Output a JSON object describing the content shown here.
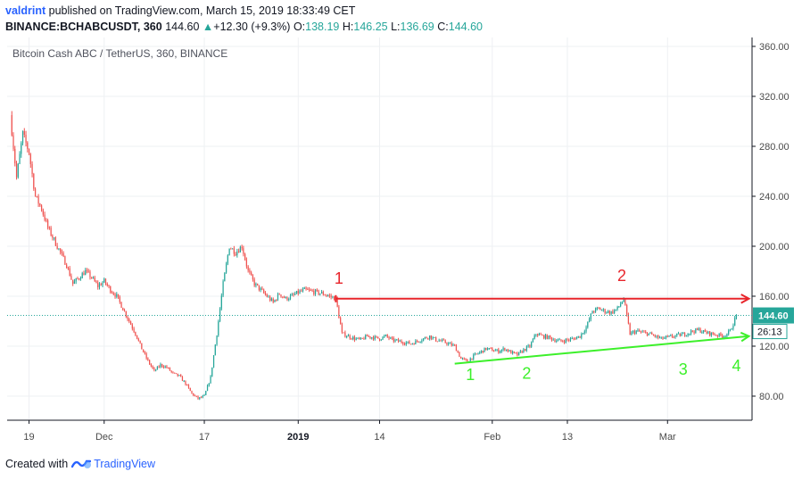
{
  "header": {
    "author": "valdrint",
    "published": "published on TradingView.com, March 15, 2019 18:33:49 CET",
    "symbol": "BINANCE:BCHABCUSDT, 360",
    "last": "144.60",
    "change_arrow": "▲",
    "change": "+12.30 (+9.3%)",
    "o_label": "O:",
    "o_value": "138.19",
    "h_label": "H:",
    "h_value": "146.25",
    "l_label": "L:",
    "l_value": "136.69",
    "c_label": "C:",
    "c_value": "144.60"
  },
  "footer": {
    "created_with": "Created with",
    "brand": "TradingView"
  },
  "colors": {
    "up": "#26a69a",
    "down": "#ef5350",
    "resistance": "#e8252b",
    "support": "#3cf02a",
    "axis": "#131722",
    "price_tag": "#26a69a"
  },
  "chart_data": {
    "type": "candlestick",
    "title": "Bitcoin Cash ABC / TetherUS, 360, BINANCE",
    "xlabel": "",
    "ylabel": "",
    "ylim": [
      70,
      365
    ],
    "y_ticks": [
      "80.00",
      "120.00",
      "160.00",
      "200.00",
      "240.00",
      "280.00",
      "320.00",
      "360.00"
    ],
    "x_ticks": [
      {
        "label": "19",
        "day": 0
      },
      {
        "label": "Dec",
        "day": 12
      },
      {
        "label": "17",
        "day": 28
      },
      {
        "label": "2019",
        "day": 43,
        "bold": true
      },
      {
        "label": "14",
        "day": 56
      },
      {
        "label": "Feb",
        "day": 74
      },
      {
        "label": "13",
        "day": 86
      },
      {
        "label": "Mar",
        "day": 102
      }
    ],
    "x_range_days": [
      -3.5,
      115.5
    ],
    "close_path": [
      [
        -3,
        305
      ],
      [
        -2,
        255
      ],
      [
        -1,
        290
      ],
      [
        0,
        275
      ],
      [
        1,
        240
      ],
      [
        2,
        230
      ],
      [
        3,
        215
      ],
      [
        4,
        205
      ],
      [
        5,
        195
      ],
      [
        6,
        185
      ],
      [
        7,
        170
      ],
      [
        8,
        175
      ],
      [
        9,
        180
      ],
      [
        10,
        175
      ],
      [
        11,
        168
      ],
      [
        12,
        172
      ],
      [
        13,
        165
      ],
      [
        14,
        160
      ],
      [
        15,
        150
      ],
      [
        16,
        140
      ],
      [
        17,
        130
      ],
      [
        18,
        118
      ],
      [
        19,
        108
      ],
      [
        20,
        100
      ],
      [
        21,
        105
      ],
      [
        22,
        103
      ],
      [
        23,
        98
      ],
      [
        24,
        96
      ],
      [
        25,
        90
      ],
      [
        26,
        82
      ],
      [
        27,
        78
      ],
      [
        28,
        80
      ],
      [
        29,
        95
      ],
      [
        30,
        130
      ],
      [
        31,
        170
      ],
      [
        32,
        200
      ],
      [
        33,
        195
      ],
      [
        34,
        200
      ],
      [
        35,
        180
      ],
      [
        36,
        170
      ],
      [
        37,
        165
      ],
      [
        38,
        160
      ],
      [
        39,
        155
      ],
      [
        40,
        162
      ],
      [
        41,
        158
      ],
      [
        42,
        160
      ],
      [
        43,
        163
      ],
      [
        44,
        165
      ],
      [
        45,
        164
      ],
      [
        46,
        163
      ],
      [
        47,
        162
      ],
      [
        48,
        160
      ],
      [
        49,
        158
      ],
      [
        50,
        130
      ],
      [
        51,
        128
      ],
      [
        52,
        126
      ],
      [
        53,
        125
      ],
      [
        54,
        128
      ],
      [
        55,
        127
      ],
      [
        56,
        126
      ],
      [
        57,
        128
      ],
      [
        58,
        125
      ],
      [
        59,
        124
      ],
      [
        60,
        123
      ],
      [
        61,
        122
      ],
      [
        62,
        124
      ],
      [
        63,
        126
      ],
      [
        64,
        128
      ],
      [
        65,
        125
      ],
      [
        66,
        124
      ],
      [
        67,
        122
      ],
      [
        68,
        120
      ],
      [
        69,
        110
      ],
      [
        70,
        108
      ],
      [
        71,
        112
      ],
      [
        72,
        115
      ],
      [
        73,
        118
      ],
      [
        74,
        117
      ],
      [
        75,
        116
      ],
      [
        76,
        118
      ],
      [
        77,
        115
      ],
      [
        78,
        113
      ],
      [
        79,
        117
      ],
      [
        80,
        120
      ],
      [
        81,
        130
      ],
      [
        82,
        128
      ],
      [
        83,
        127
      ],
      [
        84,
        125
      ],
      [
        85,
        124
      ],
      [
        86,
        125
      ],
      [
        87,
        126
      ],
      [
        88,
        128
      ],
      [
        89,
        135
      ],
      [
        90,
        148
      ],
      [
        91,
        150
      ],
      [
        92,
        148
      ],
      [
        93,
        147
      ],
      [
        94,
        150
      ],
      [
        95,
        158
      ],
      [
        96,
        130
      ],
      [
        97,
        132
      ],
      [
        98,
        131
      ],
      [
        99,
        130
      ],
      [
        100,
        128
      ],
      [
        101,
        126
      ],
      [
        102,
        127
      ],
      [
        103,
        128
      ],
      [
        104,
        129
      ],
      [
        105,
        130
      ],
      [
        106,
        132
      ],
      [
        107,
        133
      ],
      [
        108,
        131
      ],
      [
        109,
        130
      ],
      [
        110,
        129
      ],
      [
        111,
        128
      ],
      [
        112,
        132
      ],
      [
        113,
        144.6
      ]
    ],
    "lines": [
      {
        "name": "resistance",
        "from": [
          49,
          158
        ],
        "to": [
          115,
          158
        ]
      },
      {
        "name": "support",
        "from": [
          68,
          106
        ],
        "to": [
          115,
          128
        ]
      }
    ],
    "annotations": [
      {
        "text": "1",
        "day": 49.5,
        "price": 170,
        "color": "resistance"
      },
      {
        "text": "2",
        "day": 94.7,
        "price": 172,
        "color": "resistance"
      },
      {
        "text": "1",
        "day": 70.5,
        "price": 93,
        "color": "support"
      },
      {
        "text": "2",
        "day": 79.5,
        "price": 94,
        "color": "support"
      },
      {
        "text": "3",
        "day": 104.5,
        "price": 97,
        "color": "support"
      },
      {
        "text": "4",
        "day": 113.0,
        "price": 100,
        "color": "support"
      }
    ],
    "price_tag": {
      "value": "144.60",
      "countdown": "26:13"
    }
  }
}
